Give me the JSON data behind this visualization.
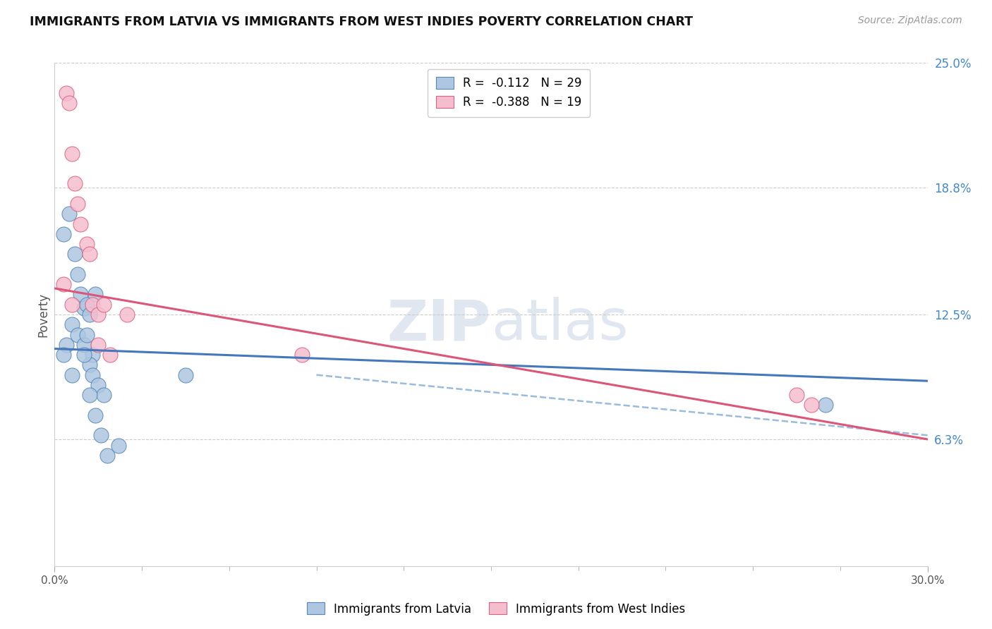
{
  "title": "IMMIGRANTS FROM LATVIA VS IMMIGRANTS FROM WEST INDIES POVERTY CORRELATION CHART",
  "source": "Source: ZipAtlas.com",
  "ylabel": "Poverty",
  "right_yticks": [
    6.3,
    12.5,
    18.8,
    25.0
  ],
  "right_ytick_labels": [
    "6.3%",
    "12.5%",
    "18.8%",
    "25.0%"
  ],
  "xmin": 0.0,
  "xmax": 30.0,
  "ymin": 0.0,
  "ymax": 25.0,
  "watermark_zip": "ZIP",
  "watermark_atlas": "atlas",
  "latvia_color": "#aec6e0",
  "westindies_color": "#f5bece",
  "latvia_edge": "#5588bb",
  "westindies_edge": "#e06080",
  "latvia_line_color": "#4477bb",
  "westindies_line_color": "#dd5577",
  "dashed_line_color": "#99bbdd",
  "latvia_scatter_x": [
    0.3,
    0.5,
    0.7,
    0.8,
    0.9,
    1.0,
    1.1,
    1.2,
    1.3,
    1.4,
    0.4,
    0.6,
    0.8,
    1.0,
    1.1,
    1.2,
    1.3,
    1.5,
    1.7,
    0.3,
    0.6,
    1.0,
    1.2,
    1.4,
    1.6,
    1.8,
    2.2,
    4.5,
    26.5
  ],
  "latvia_scatter_y": [
    16.5,
    17.5,
    15.5,
    14.5,
    13.5,
    12.8,
    13.0,
    12.5,
    10.5,
    13.5,
    11.0,
    12.0,
    11.5,
    11.0,
    11.5,
    10.0,
    9.5,
    9.0,
    8.5,
    10.5,
    9.5,
    10.5,
    8.5,
    7.5,
    6.5,
    5.5,
    6.0,
    9.5,
    8.0
  ],
  "westindies_scatter_x": [
    0.4,
    0.5,
    0.6,
    0.7,
    0.8,
    0.9,
    1.1,
    1.2,
    1.3,
    1.5,
    1.7,
    0.3,
    0.6,
    2.5,
    1.5,
    8.5,
    25.5,
    26.0,
    1.9
  ],
  "westindies_scatter_y": [
    23.5,
    23.0,
    20.5,
    19.0,
    18.0,
    17.0,
    16.0,
    15.5,
    13.0,
    12.5,
    13.0,
    14.0,
    13.0,
    12.5,
    11.0,
    10.5,
    8.5,
    8.0,
    10.5
  ],
  "latvia_trend_x": [
    0.0,
    30.0
  ],
  "latvia_trend_y": [
    10.8,
    9.2
  ],
  "westindies_trend_x": [
    0.0,
    30.0
  ],
  "westindies_trend_y": [
    13.8,
    6.3
  ],
  "dashed_trend_x": [
    9.0,
    30.0
  ],
  "dashed_trend_y": [
    9.5,
    6.5
  ],
  "x_minor_ticks": [
    0,
    3,
    6,
    9,
    12,
    15,
    18,
    21,
    24,
    27,
    30
  ]
}
